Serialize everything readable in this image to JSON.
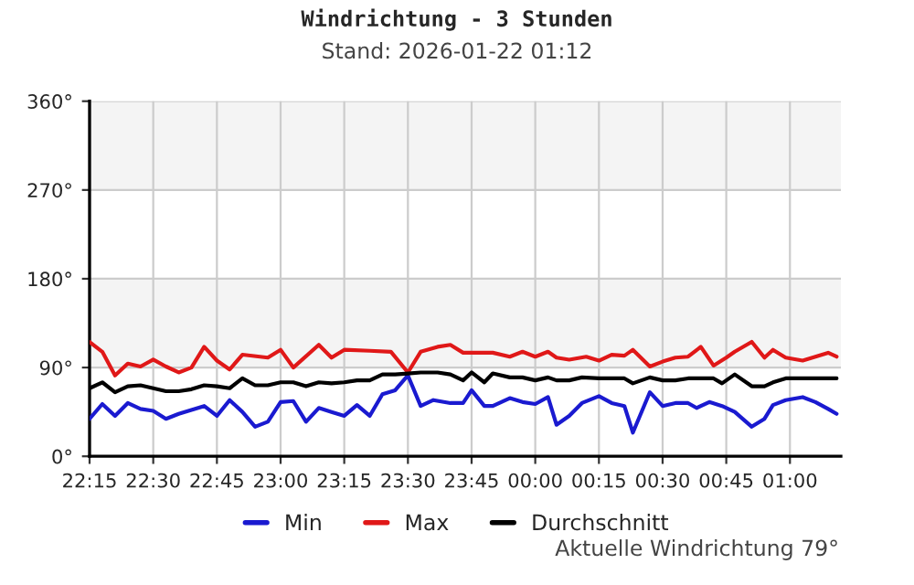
{
  "chart_data": {
    "type": "line",
    "title": "Windrichtung - 3 Stunden",
    "subtitle": "Stand: 2026-01-22 01:12",
    "annotations": [
      "Aktuelle Windrichtung 79°"
    ],
    "xlim": [
      "2026-01-21T22:15",
      "2026-01-22T01:12"
    ],
    "xticks": [
      {
        "value": "2026-01-21T22:15",
        "label": "22:15"
      },
      {
        "value": "2026-01-21T22:30",
        "label": "22:30"
      },
      {
        "value": "2026-01-21T22:45",
        "label": "22:45"
      },
      {
        "value": "2026-01-21T23:00",
        "label": "23:00"
      },
      {
        "value": "2026-01-21T23:15",
        "label": "23:15"
      },
      {
        "value": "2026-01-21T23:30",
        "label": "23:30"
      },
      {
        "value": "2026-01-21T23:45",
        "label": "23:45"
      },
      {
        "value": "2026-01-22T00:00",
        "label": "00:00"
      },
      {
        "value": "2026-01-22T00:15",
        "label": "00:15"
      },
      {
        "value": "2026-01-22T00:30",
        "label": "00:30"
      },
      {
        "value": "2026-01-22T00:45",
        "label": "00:45"
      },
      {
        "value": "2026-01-22T01:00",
        "label": "01:00"
      }
    ],
    "ylim": [
      0,
      360
    ],
    "yticks": [
      {
        "value": 0,
        "label": "0°"
      },
      {
        "value": 90,
        "label": "90°"
      },
      {
        "value": 180,
        "label": "180°"
      },
      {
        "value": 270,
        "label": "270°"
      },
      {
        "value": 360,
        "label": "360°"
      }
    ],
    "bands": [
      {
        "axis": "y",
        "from": 90,
        "to": 180,
        "color": "#f4f4f4"
      },
      {
        "axis": "y",
        "from": 270,
        "to": 360,
        "color": "#f4f4f4"
      }
    ],
    "grid": true,
    "legend": "bottom",
    "line_style": "solid",
    "marker": "none",
    "series": [
      {
        "name": "Min",
        "color": "#1a1ad0",
        "x": [
          "2026-01-21T22:15",
          "2026-01-21T22:18",
          "2026-01-21T22:21",
          "2026-01-21T22:24",
          "2026-01-21T22:27",
          "2026-01-21T22:30",
          "2026-01-21T22:33",
          "2026-01-21T22:36",
          "2026-01-21T22:42",
          "2026-01-21T22:45",
          "2026-01-21T22:48",
          "2026-01-21T22:51",
          "2026-01-21T22:54",
          "2026-01-21T22:57",
          "2026-01-21T23:00",
          "2026-01-21T23:03",
          "2026-01-21T23:06",
          "2026-01-21T23:09",
          "2026-01-21T23:12",
          "2026-01-21T23:15",
          "2026-01-21T23:18",
          "2026-01-21T23:21",
          "2026-01-21T23:24",
          "2026-01-21T23:27",
          "2026-01-21T23:30",
          "2026-01-21T23:33",
          "2026-01-21T23:36",
          "2026-01-21T23:40",
          "2026-01-21T23:43",
          "2026-01-21T23:45",
          "2026-01-21T23:48",
          "2026-01-21T23:50",
          "2026-01-21T23:54",
          "2026-01-21T23:57",
          "2026-01-22T00:00",
          "2026-01-22T00:03",
          "2026-01-22T00:05",
          "2026-01-22T00:08",
          "2026-01-22T00:11",
          "2026-01-22T00:15",
          "2026-01-22T00:18",
          "2026-01-22T00:21",
          "2026-01-22T00:23",
          "2026-01-22T00:27",
          "2026-01-22T00:30",
          "2026-01-22T00:33",
          "2026-01-22T00:36",
          "2026-01-22T00:38",
          "2026-01-22T00:41",
          "2026-01-22T00:44",
          "2026-01-22T00:47",
          "2026-01-22T00:51",
          "2026-01-22T00:54",
          "2026-01-22T00:56",
          "2026-01-22T00:59",
          "2026-01-22T01:03",
          "2026-01-22T01:06",
          "2026-01-22T01:09",
          "2026-01-22T01:11"
        ],
        "values": [
          38,
          53,
          41,
          54,
          48,
          46,
          38,
          43,
          51,
          41,
          57,
          45,
          30,
          35,
          55,
          56,
          35,
          49,
          45,
          41,
          52,
          41,
          63,
          67,
          82,
          51,
          57,
          54,
          54,
          67,
          51,
          51,
          59,
          55,
          53,
          60,
          32,
          41,
          54,
          61,
          54,
          51,
          24,
          65,
          51,
          54,
          54,
          49,
          55,
          51,
          45,
          30,
          38,
          52,
          57,
          60,
          55,
          48,
          43
        ]
      },
      {
        "name": "Max",
        "color": "#e01818",
        "x": [
          "2026-01-21T22:15",
          "2026-01-21T22:18",
          "2026-01-21T22:21",
          "2026-01-21T22:24",
          "2026-01-21T22:27",
          "2026-01-21T22:30",
          "2026-01-21T22:33",
          "2026-01-21T22:36",
          "2026-01-21T22:39",
          "2026-01-21T22:42",
          "2026-01-21T22:45",
          "2026-01-21T22:48",
          "2026-01-21T22:51",
          "2026-01-21T22:57",
          "2026-01-21T23:00",
          "2026-01-21T23:03",
          "2026-01-21T23:09",
          "2026-01-21T23:12",
          "2026-01-21T23:15",
          "2026-01-21T23:21",
          "2026-01-21T23:26",
          "2026-01-21T23:30",
          "2026-01-21T23:33",
          "2026-01-21T23:37",
          "2026-01-21T23:40",
          "2026-01-21T23:43",
          "2026-01-21T23:45",
          "2026-01-21T23:50",
          "2026-01-21T23:54",
          "2026-01-21T23:57",
          "2026-01-22T00:00",
          "2026-01-22T00:03",
          "2026-01-22T00:05",
          "2026-01-22T00:08",
          "2026-01-22T00:12",
          "2026-01-22T00:15",
          "2026-01-22T00:18",
          "2026-01-22T00:21",
          "2026-01-22T00:23",
          "2026-01-22T00:27",
          "2026-01-22T00:30",
          "2026-01-22T00:33",
          "2026-01-22T00:36",
          "2026-01-22T00:39",
          "2026-01-22T00:42",
          "2026-01-22T00:45",
          "2026-01-22T00:47",
          "2026-01-22T00:51",
          "2026-01-22T00:54",
          "2026-01-22T00:56",
          "2026-01-22T00:59",
          "2026-01-22T01:03",
          "2026-01-22T01:06",
          "2026-01-22T01:09",
          "2026-01-22T01:11"
        ],
        "values": [
          116,
          106,
          82,
          94,
          91,
          98,
          91,
          85,
          90,
          111,
          97,
          88,
          103,
          100,
          108,
          90,
          113,
          100,
          108,
          107,
          106,
          85,
          106,
          111,
          113,
          105,
          105,
          105,
          101,
          106,
          101,
          106,
          100,
          98,
          101,
          97,
          103,
          102,
          108,
          91,
          96,
          100,
          101,
          111,
          92,
          100,
          106,
          116,
          100,
          108,
          100,
          97,
          101,
          105,
          101
        ]
      },
      {
        "name": "Durchschnitt",
        "color": "#000000",
        "x": [
          "2026-01-21T22:15",
          "2026-01-21T22:18",
          "2026-01-21T22:21",
          "2026-01-21T22:24",
          "2026-01-21T22:27",
          "2026-01-21T22:30",
          "2026-01-21T22:33",
          "2026-01-21T22:36",
          "2026-01-21T22:39",
          "2026-01-21T22:42",
          "2026-01-21T22:45",
          "2026-01-21T22:48",
          "2026-01-21T22:51",
          "2026-01-21T22:54",
          "2026-01-21T22:57",
          "2026-01-21T23:00",
          "2026-01-21T23:03",
          "2026-01-21T23:06",
          "2026-01-21T23:09",
          "2026-01-21T23:12",
          "2026-01-21T23:15",
          "2026-01-21T23:18",
          "2026-01-21T23:21",
          "2026-01-21T23:24",
          "2026-01-21T23:27",
          "2026-01-21T23:30",
          "2026-01-21T23:33",
          "2026-01-21T23:37",
          "2026-01-21T23:40",
          "2026-01-21T23:43",
          "2026-01-21T23:45",
          "2026-01-21T23:48",
          "2026-01-21T23:50",
          "2026-01-21T23:54",
          "2026-01-21T23:57",
          "2026-01-22T00:00",
          "2026-01-22T00:03",
          "2026-01-22T00:05",
          "2026-01-22T00:08",
          "2026-01-22T00:11",
          "2026-01-22T00:15",
          "2026-01-22T00:18",
          "2026-01-22T00:21",
          "2026-01-22T00:23",
          "2026-01-22T00:27",
          "2026-01-22T00:30",
          "2026-01-22T00:33",
          "2026-01-22T00:36",
          "2026-01-22T00:39",
          "2026-01-22T00:42",
          "2026-01-22T00:44",
          "2026-01-22T00:47",
          "2026-01-22T00:51",
          "2026-01-22T00:54",
          "2026-01-22T00:56",
          "2026-01-22T00:59",
          "2026-01-22T01:03",
          "2026-01-22T01:11"
        ],
        "values": [
          69,
          75,
          65,
          71,
          72,
          69,
          66,
          66,
          68,
          72,
          71,
          69,
          79,
          72,
          72,
          75,
          75,
          71,
          75,
          74,
          75,
          77,
          77,
          83,
          83,
          84,
          85,
          85,
          83,
          77,
          85,
          75,
          84,
          80,
          80,
          77,
          80,
          77,
          77,
          80,
          79,
          79,
          79,
          74,
          80,
          77,
          77,
          79,
          79,
          79,
          74,
          83,
          71,
          71,
          75,
          79,
          79,
          79
        ]
      }
    ]
  }
}
